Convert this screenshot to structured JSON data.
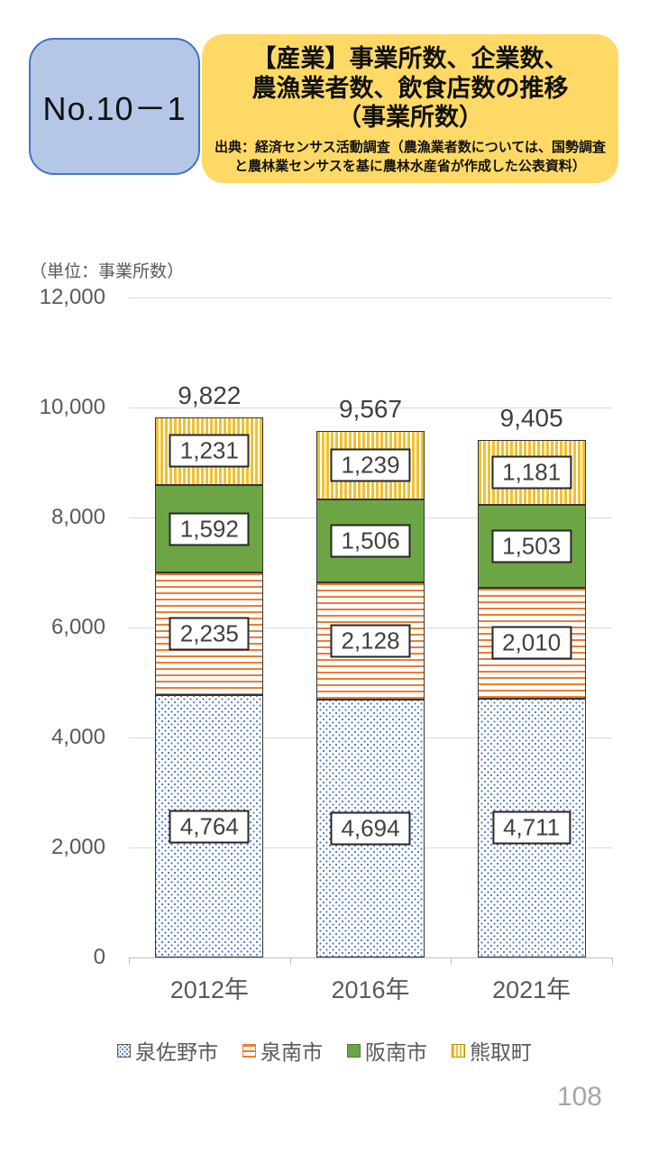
{
  "header": {
    "number_label": "No.10－1",
    "title_lines": [
      "【産業】事業所数、企業数、",
      "農漁業者数、飲食店数の推移",
      "（事業所数）"
    ],
    "source_lines": [
      "出典：経済センサス活動調査（農漁業者数については、国勢調査",
      "と農林業センサスを基に農林水産省が作成した公表資料）"
    ]
  },
  "chart_data": {
    "type": "bar",
    "stacked": true,
    "title": "【産業】事業所数、企業数、農漁業者数、飲食店数の推移（事業所数）",
    "unit_label": "（単位：事業所数）",
    "categories": [
      "2012年",
      "2016年",
      "2021年"
    ],
    "series": [
      {
        "name": "泉佐野市",
        "values": [
          4764,
          4694,
          4711
        ],
        "labels": [
          "4,764",
          "4,694",
          "4,711"
        ],
        "pattern": "dots",
        "color": "#4472c4"
      },
      {
        "name": "泉南市",
        "values": [
          2235,
          2128,
          2010
        ],
        "labels": [
          "2,235",
          "2,128",
          "2,010"
        ],
        "pattern": "hstripes",
        "color": "#ed7d31"
      },
      {
        "name": "阪南市",
        "values": [
          1592,
          1506,
          1503
        ],
        "labels": [
          "1,592",
          "1,506",
          "1,503"
        ],
        "pattern": "solid",
        "color": "#6ca544"
      },
      {
        "name": "熊取町",
        "values": [
          1231,
          1239,
          1181
        ],
        "labels": [
          "1,231",
          "1,239",
          "1,181"
        ],
        "pattern": "vstripes",
        "color": "#f2c030"
      }
    ],
    "totals": [
      9822,
      9567,
      9405
    ],
    "totals_labels": [
      "9,822",
      "9,567",
      "9,405"
    ],
    "ylim": [
      0,
      12000
    ],
    "ytick_step": 2000,
    "yticks": [
      "12,000",
      "10,000",
      "8,000",
      "6,000",
      "4,000",
      "2,000",
      "0"
    ],
    "grid": true,
    "legend_position": "bottom"
  },
  "page_number": "108"
}
